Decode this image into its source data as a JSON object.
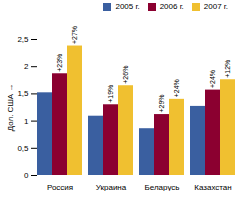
{
  "chart_data": {
    "type": "bar",
    "categories": [
      "Россия",
      "Украина",
      "Беларусь",
      "Казахстан"
    ],
    "series": [
      {
        "name": "2005 г.",
        "color": "#3a5fa0",
        "values": [
          1.52,
          1.09,
          0.86,
          1.27
        ]
      },
      {
        "name": "2006 г.",
        "color": "#8b0030",
        "values": [
          1.87,
          1.3,
          1.12,
          1.57
        ],
        "labels": [
          "+23%",
          "+19%",
          "+29%",
          "+24%"
        ]
      },
      {
        "name": "2007 г.",
        "color": "#f0c030",
        "values": [
          2.38,
          1.65,
          1.4,
          1.76
        ],
        "labels": [
          "+27%",
          "+26%",
          "+24%",
          "+12%"
        ]
      }
    ],
    "ylabel": "Дол. США",
    "ylim": [
      0,
      2.5
    ],
    "yticks": [
      0,
      {
        "value": 0.5,
        "label": "0,5"
      },
      1,
      {
        "value": 1.5,
        "label": "1,5"
      },
      2,
      {
        "value": 2.5,
        "label": "2,5"
      }
    ],
    "grid": false,
    "legend": "upper right"
  }
}
